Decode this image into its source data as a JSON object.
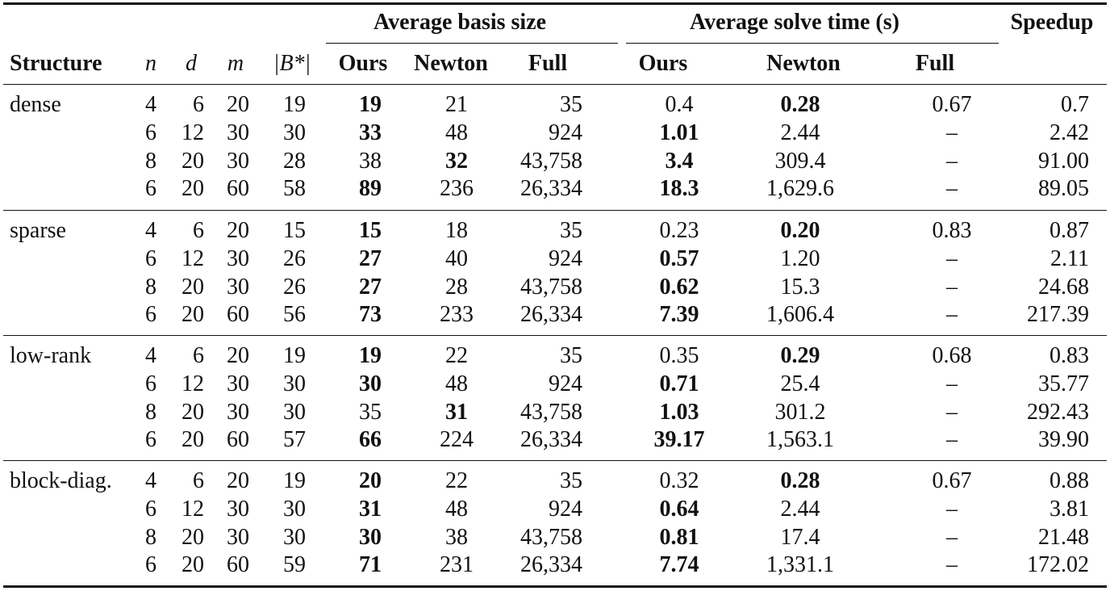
{
  "headers": {
    "group_basis": "Average basis size",
    "group_time": "Average solve time (s)",
    "speedup": "Speedup",
    "structure": "Structure",
    "n": "n",
    "d": "d",
    "m": "m",
    "bstar": "|B*|",
    "basis_ours": "Ours",
    "basis_newton": "Newton",
    "basis_full": "Full",
    "time_ours": "Ours",
    "time_newton": "Newton",
    "time_full": "Full"
  },
  "groups": [
    {
      "structure": "dense",
      "rows": [
        {
          "n": "4",
          "d": "6",
          "m": "20",
          "bstar": "19",
          "basis_ours": "19",
          "basis_newton": "21",
          "basis_full": "35",
          "time_ours": "0.4",
          "time_newton": "0.28",
          "time_full": "0.67",
          "speedup": "0.7",
          "bold": [
            "basis_ours",
            "time_newton"
          ]
        },
        {
          "n": "6",
          "d": "12",
          "m": "30",
          "bstar": "30",
          "basis_ours": "33",
          "basis_newton": "48",
          "basis_full": "924",
          "time_ours": "1.01",
          "time_newton": "2.44",
          "time_full": "–",
          "speedup": "2.42",
          "bold": [
            "basis_ours",
            "time_ours"
          ]
        },
        {
          "n": "8",
          "d": "20",
          "m": "30",
          "bstar": "28",
          "basis_ours": "38",
          "basis_newton": "32",
          "basis_full": "43,758",
          "time_ours": "3.4",
          "time_newton": "309.4",
          "time_full": "–",
          "speedup": "91.00",
          "bold": [
            "basis_newton",
            "time_ours"
          ]
        },
        {
          "n": "6",
          "d": "20",
          "m": "60",
          "bstar": "58",
          "basis_ours": "89",
          "basis_newton": "236",
          "basis_full": "26,334",
          "time_ours": "18.3",
          "time_newton": "1,629.6",
          "time_full": "–",
          "speedup": "89.05",
          "bold": [
            "basis_ours",
            "time_ours"
          ]
        }
      ]
    },
    {
      "structure": "sparse",
      "rows": [
        {
          "n": "4",
          "d": "6",
          "m": "20",
          "bstar": "15",
          "basis_ours": "15",
          "basis_newton": "18",
          "basis_full": "35",
          "time_ours": "0.23",
          "time_newton": "0.20",
          "time_full": "0.83",
          "speedup": "0.87",
          "bold": [
            "basis_ours",
            "time_newton"
          ]
        },
        {
          "n": "6",
          "d": "12",
          "m": "30",
          "bstar": "26",
          "basis_ours": "27",
          "basis_newton": "40",
          "basis_full": "924",
          "time_ours": "0.57",
          "time_newton": "1.20",
          "time_full": "–",
          "speedup": "2.11",
          "bold": [
            "basis_ours",
            "time_ours"
          ]
        },
        {
          "n": "8",
          "d": "20",
          "m": "30",
          "bstar": "26",
          "basis_ours": "27",
          "basis_newton": "28",
          "basis_full": "43,758",
          "time_ours": "0.62",
          "time_newton": "15.3",
          "time_full": "–",
          "speedup": "24.68",
          "bold": [
            "basis_ours",
            "time_ours"
          ]
        },
        {
          "n": "6",
          "d": "20",
          "m": "60",
          "bstar": "56",
          "basis_ours": "73",
          "basis_newton": "233",
          "basis_full": "26,334",
          "time_ours": "7.39",
          "time_newton": "1,606.4",
          "time_full": "–",
          "speedup": "217.39",
          "bold": [
            "basis_ours",
            "time_ours"
          ]
        }
      ]
    },
    {
      "structure": "low-rank",
      "rows": [
        {
          "n": "4",
          "d": "6",
          "m": "20",
          "bstar": "19",
          "basis_ours": "19",
          "basis_newton": "22",
          "basis_full": "35",
          "time_ours": "0.35",
          "time_newton": "0.29",
          "time_full": "0.68",
          "speedup": "0.83",
          "bold": [
            "basis_ours",
            "time_newton"
          ]
        },
        {
          "n": "6",
          "d": "12",
          "m": "30",
          "bstar": "30",
          "basis_ours": "30",
          "basis_newton": "48",
          "basis_full": "924",
          "time_ours": "0.71",
          "time_newton": "25.4",
          "time_full": "–",
          "speedup": "35.77",
          "bold": [
            "basis_ours",
            "time_ours"
          ]
        },
        {
          "n": "8",
          "d": "20",
          "m": "30",
          "bstar": "30",
          "basis_ours": "35",
          "basis_newton": "31",
          "basis_full": "43,758",
          "time_ours": "1.03",
          "time_newton": "301.2",
          "time_full": "–",
          "speedup": "292.43",
          "bold": [
            "basis_newton",
            "time_ours"
          ]
        },
        {
          "n": "6",
          "d": "20",
          "m": "60",
          "bstar": "57",
          "basis_ours": "66",
          "basis_newton": "224",
          "basis_full": "26,334",
          "time_ours": "39.17",
          "time_newton": "1,563.1",
          "time_full": "–",
          "speedup": "39.90",
          "bold": [
            "basis_ours",
            "time_ours"
          ]
        }
      ]
    },
    {
      "structure": "block-diag.",
      "rows": [
        {
          "n": "4",
          "d": "6",
          "m": "20",
          "bstar": "19",
          "basis_ours": "20",
          "basis_newton": "22",
          "basis_full": "35",
          "time_ours": "0.32",
          "time_newton": "0.28",
          "time_full": "0.67",
          "speedup": "0.88",
          "bold": [
            "basis_ours",
            "time_newton"
          ]
        },
        {
          "n": "6",
          "d": "12",
          "m": "30",
          "bstar": "30",
          "basis_ours": "31",
          "basis_newton": "48",
          "basis_full": "924",
          "time_ours": "0.64",
          "time_newton": "2.44",
          "time_full": "–",
          "speedup": "3.81",
          "bold": [
            "basis_ours",
            "time_ours"
          ]
        },
        {
          "n": "8",
          "d": "20",
          "m": "30",
          "bstar": "30",
          "basis_ours": "30",
          "basis_newton": "38",
          "basis_full": "43,758",
          "time_ours": "0.81",
          "time_newton": "17.4",
          "time_full": "–",
          "speedup": "21.48",
          "bold": [
            "basis_ours",
            "time_ours"
          ]
        },
        {
          "n": "6",
          "d": "20",
          "m": "60",
          "bstar": "59",
          "basis_ours": "71",
          "basis_newton": "231",
          "basis_full": "26,334",
          "time_ours": "7.74",
          "time_newton": "1,331.1",
          "time_full": "–",
          "speedup": "172.02",
          "bold": [
            "basis_ours",
            "time_ours"
          ]
        }
      ]
    }
  ]
}
